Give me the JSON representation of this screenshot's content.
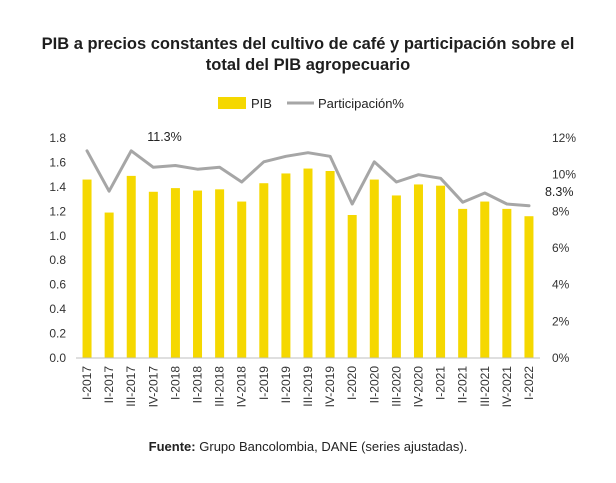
{
  "chart_data": {
    "type": "bar+line",
    "title_line1": "PIB a precios constantes del cultivo de café y participación sobre el",
    "title_line2": "total del PIB agropecuario",
    "categories": [
      "I-2017",
      "II-2017",
      "III-2017",
      "IV-2017",
      "I-2018",
      "II-2018",
      "III-2018",
      "IV-2018",
      "I-2019",
      "II-2019",
      "III-2019",
      "IV-2019",
      "I-2020",
      "II-2020",
      "III-2020",
      "IV-2020",
      "I-2021",
      "II-2021",
      "III-2021",
      "IV-2021",
      "I-2022"
    ],
    "series": [
      {
        "name": "PIB",
        "type": "bar",
        "axis": "left",
        "color": "#f5d800",
        "values": [
          1.46,
          1.19,
          1.49,
          1.36,
          1.39,
          1.37,
          1.38,
          1.28,
          1.43,
          1.51,
          1.55,
          1.53,
          1.17,
          1.46,
          1.33,
          1.42,
          1.41,
          1.22,
          1.28,
          1.22,
          1.16
        ]
      },
      {
        "name": "Participación%",
        "type": "line",
        "axis": "right",
        "color": "#a6a6a6",
        "values": [
          11.3,
          9.1,
          11.3,
          10.4,
          10.5,
          10.3,
          10.4,
          9.6,
          10.7,
          11.0,
          11.2,
          11.0,
          8.4,
          10.7,
          9.6,
          10.0,
          9.8,
          8.5,
          9.0,
          8.4,
          8.3
        ]
      }
    ],
    "y_left": {
      "min": 0,
      "max": 1.8,
      "ticks": [
        "0.0",
        "0.2",
        "0.4",
        "0.6",
        "0.8",
        "1.0",
        "1.2",
        "1.4",
        "1.6",
        "1.8"
      ]
    },
    "y_right": {
      "min": 0,
      "max": 12,
      "ticks": [
        "0%",
        "2%",
        "4%",
        "6%",
        "8%",
        "10%",
        "12%"
      ]
    },
    "annotations": [
      {
        "label": "11.3%",
        "category_index": 2
      },
      {
        "label": "8.3%",
        "category_index": 20
      }
    ],
    "legend": {
      "position": "top-center",
      "items": [
        "PIB",
        "Participación%"
      ]
    }
  },
  "source": {
    "label": "Fuente:",
    "text": "Grupo Bancolombia, DANE (series ajustadas)."
  }
}
